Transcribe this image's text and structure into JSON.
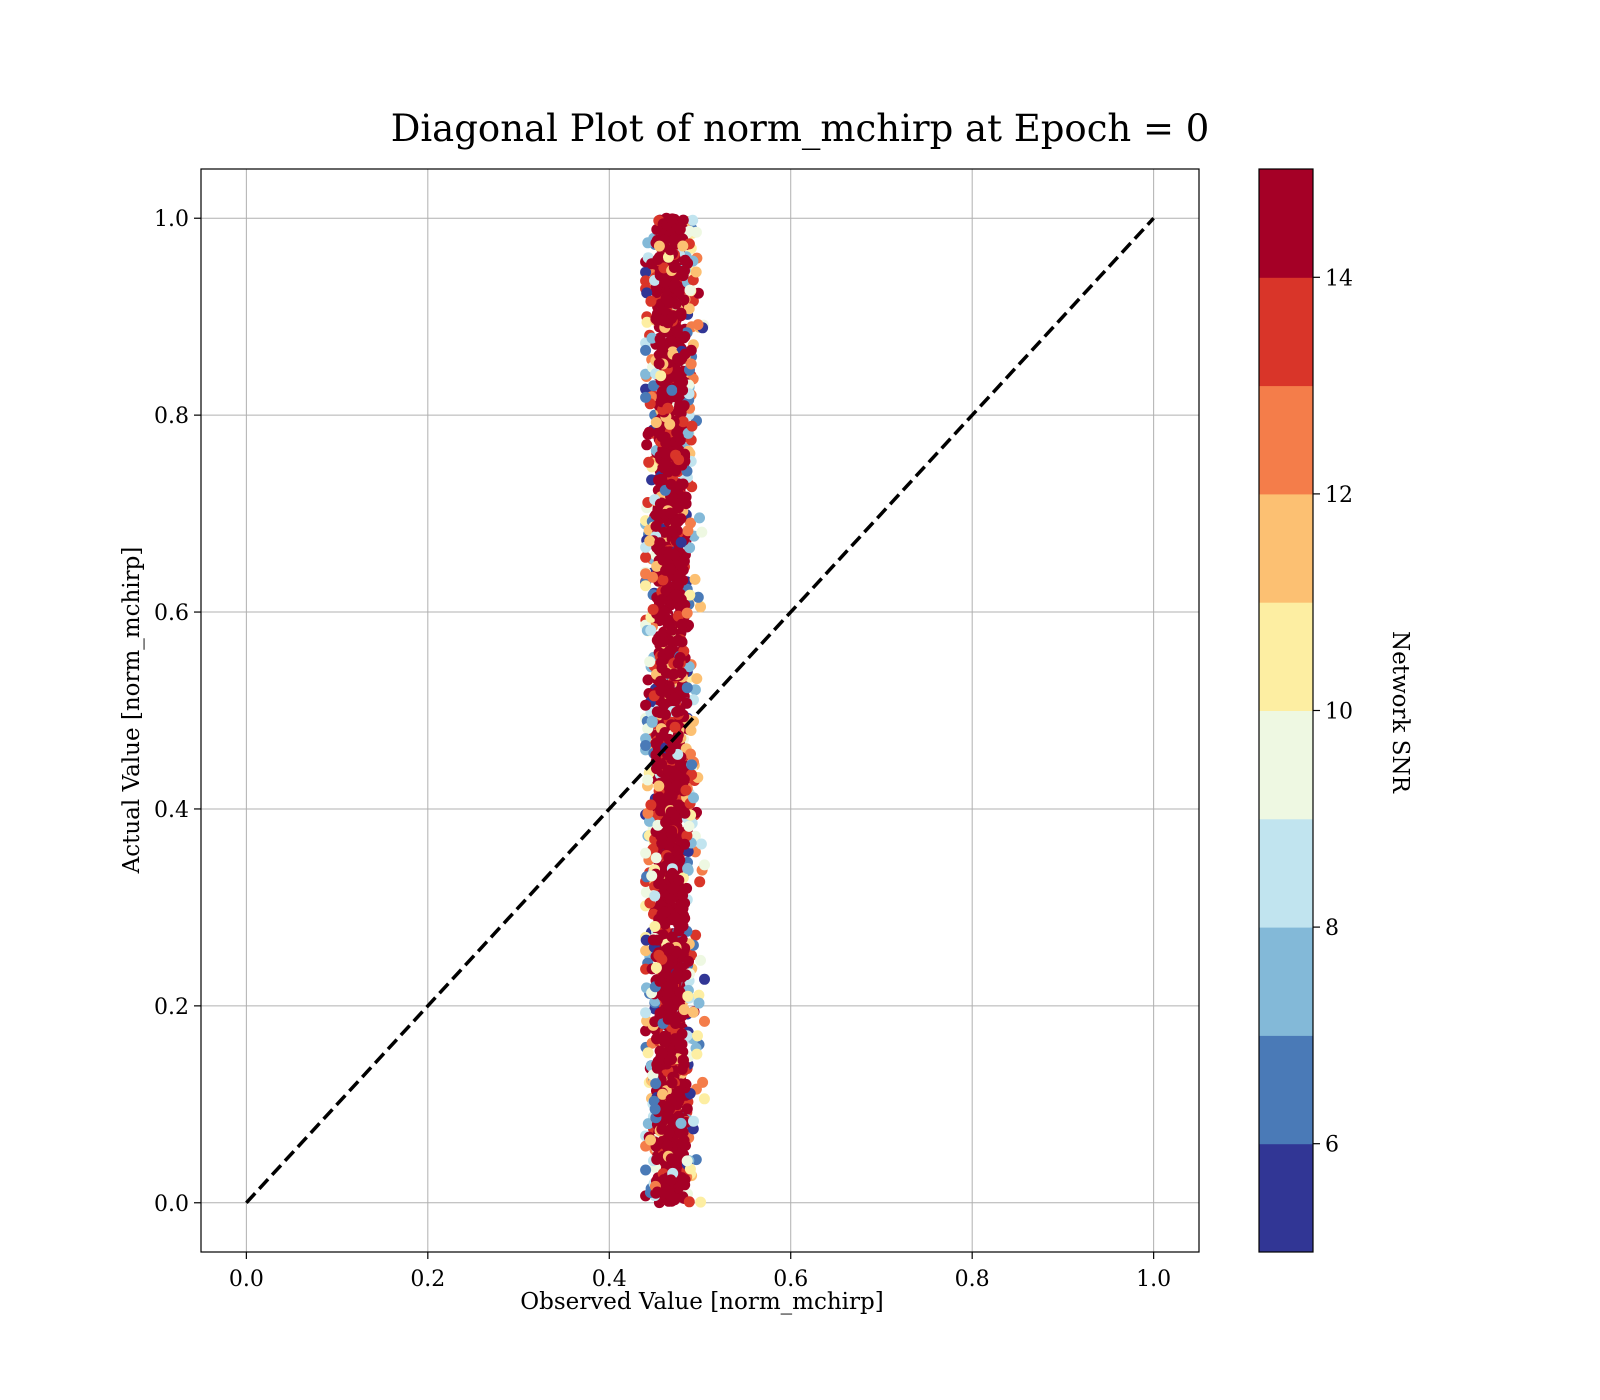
{
  "chart_data": {
    "type": "scatter",
    "title": "Diagonal Plot of norm_mchirp at Epoch = 0",
    "xlabel": "Observed Value [norm_mchirp]",
    "ylabel": "Actual Value [norm_mchirp]",
    "xlim": [
      -0.05,
      1.05
    ],
    "ylim": [
      -0.05,
      1.05
    ],
    "xticks": [
      "0.0",
      "0.2",
      "0.4",
      "0.6",
      "0.8",
      "1.0"
    ],
    "yticks": [
      "0.0",
      "0.2",
      "0.4",
      "0.6",
      "0.8",
      "1.0"
    ],
    "grid": true,
    "reference_line": {
      "style": "dashed",
      "color": "#000000",
      "from": [
        0,
        0
      ],
      "to": [
        1,
        1
      ]
    },
    "point_cloud": {
      "x_center": 0.468,
      "x_spread": 0.012,
      "x_range": [
        0.44,
        0.505
      ],
      "y_range": [
        0.0,
        1.0
      ],
      "dominant_color": "#a50026"
    },
    "colorbar": {
      "label": "Network SNR",
      "range": [
        5,
        15
      ],
      "ticks": [
        "6",
        "8",
        "10",
        "12",
        "14"
      ],
      "bins": [
        {
          "from": 5,
          "to": 6,
          "color": "#313695"
        },
        {
          "from": 6,
          "to": 7,
          "color": "#4a7ab7"
        },
        {
          "from": 7,
          "to": 8,
          "color": "#83b9d8"
        },
        {
          "from": 8,
          "to": 9,
          "color": "#c1e4ef"
        },
        {
          "from": 9,
          "to": 10,
          "color": "#eef8e2"
        },
        {
          "from": 10,
          "to": 11,
          "color": "#fdeea2"
        },
        {
          "from": 11,
          "to": 12,
          "color": "#fcc072"
        },
        {
          "from": 12,
          "to": 13,
          "color": "#f47d4a"
        },
        {
          "from": 13,
          "to": 14,
          "color": "#d93529"
        },
        {
          "from": 14,
          "to": 15,
          "color": "#a50026"
        }
      ]
    }
  }
}
